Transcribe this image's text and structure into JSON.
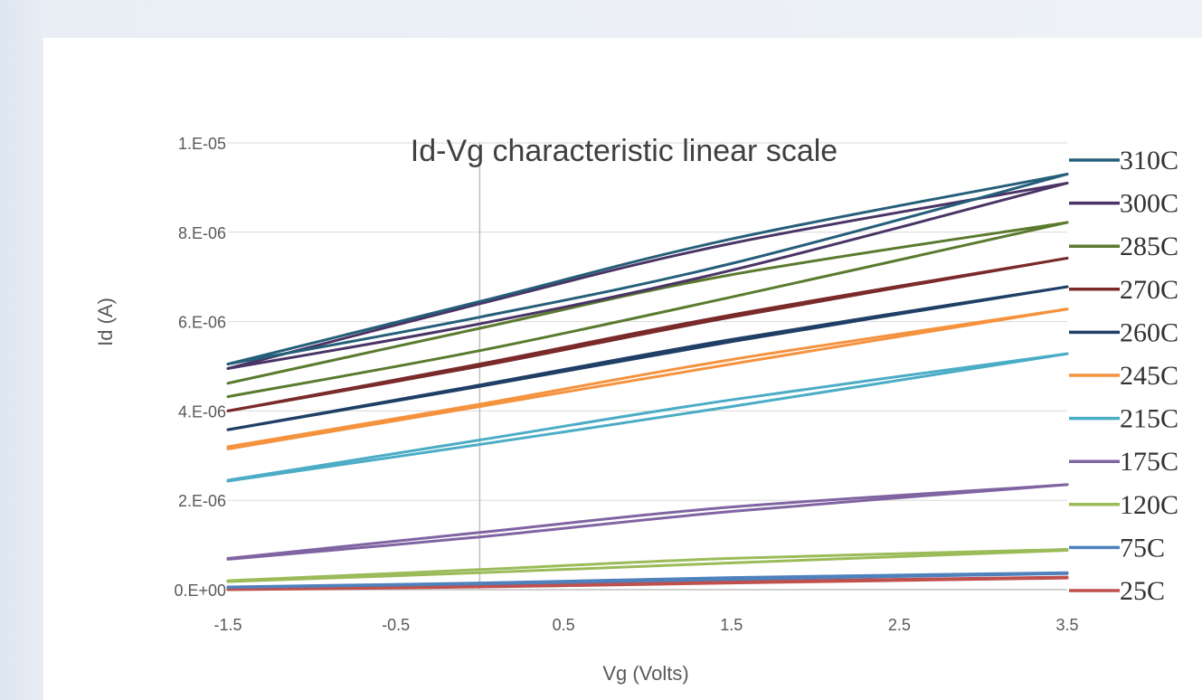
{
  "chart_data": {
    "type": "line",
    "title": "Id-Vg characteristic  linear scale",
    "xlabel": "Vg (Volts)",
    "ylabel": "Id (A)",
    "xlim": [
      -1.5,
      3.5
    ],
    "ylim": [
      0,
      1e-05
    ],
    "x_ticks": [
      -1.5,
      -0.5,
      0.5,
      1.5,
      2.5,
      3.5
    ],
    "x_tick_labels": [
      "-1.5",
      "-0.5",
      "0.5",
      "1.5",
      "2.5",
      "3.5"
    ],
    "y_ticks": [
      0,
      2e-06,
      4e-06,
      6e-06,
      8e-06,
      1e-05
    ],
    "y_tick_labels": [
      "0.E+00",
      "2.E-06",
      "4.E-06",
      "6.E-06",
      "8.E-06",
      "1.E-05"
    ],
    "grid": "horizontal",
    "reference_line_x": 0,
    "legend_position": "right",
    "sweep_note": "each series is a forward and reverse Vg sweep (hysteresis loop)",
    "series": [
      {
        "name": "310C",
        "color": "#255e79",
        "forward": [
          [
            -1.5,
            5.05e-06
          ],
          [
            0,
            6.45e-06
          ],
          [
            1.5,
            7.85e-06
          ],
          [
            3.5,
            9.3e-06
          ]
        ],
        "reverse": [
          [
            -1.5,
            5.05e-06
          ],
          [
            0,
            6.1e-06
          ],
          [
            1.5,
            7.3e-06
          ],
          [
            3.5,
            9.3e-06
          ]
        ]
      },
      {
        "name": "300C",
        "color": "#4a3466",
        "forward": [
          [
            -1.5,
            4.95e-06
          ],
          [
            0,
            6.4e-06
          ],
          [
            1.5,
            7.75e-06
          ],
          [
            3.5,
            9.1e-06
          ]
        ],
        "reverse": [
          [
            -1.5,
            4.95e-06
          ],
          [
            0,
            5.95e-06
          ],
          [
            1.5,
            7.15e-06
          ],
          [
            3.5,
            9.1e-06
          ]
        ]
      },
      {
        "name": "285C",
        "color": "#5a7a2e",
        "forward": [
          [
            -1.5,
            4.62e-06
          ],
          [
            0,
            5.85e-06
          ],
          [
            1.5,
            7.05e-06
          ],
          [
            3.5,
            8.22e-06
          ]
        ],
        "reverse": [
          [
            -1.5,
            4.32e-06
          ],
          [
            0,
            5.35e-06
          ],
          [
            1.5,
            6.55e-06
          ],
          [
            3.5,
            8.22e-06
          ]
        ]
      },
      {
        "name": "270C",
        "color": "#7a2a2a",
        "forward": [
          [
            -1.5,
            4e-06
          ],
          [
            0,
            5.05e-06
          ],
          [
            1.5,
            6.15e-06
          ],
          [
            3.5,
            7.42e-06
          ]
        ],
        "reverse": [
          [
            -1.5,
            4e-06
          ],
          [
            0,
            5e-06
          ],
          [
            1.5,
            6.1e-06
          ],
          [
            3.5,
            7.42e-06
          ]
        ]
      },
      {
        "name": "260C",
        "color": "#1f3f66",
        "forward": [
          [
            -1.5,
            3.58e-06
          ],
          [
            0,
            4.58e-06
          ],
          [
            1.5,
            5.6e-06
          ],
          [
            3.5,
            6.78e-06
          ]
        ],
        "reverse": [
          [
            -1.5,
            3.58e-06
          ],
          [
            0,
            4.55e-06
          ],
          [
            1.5,
            5.55e-06
          ],
          [
            3.5,
            6.78e-06
          ]
        ]
      },
      {
        "name": "245C",
        "color": "#f5923e",
        "forward": [
          [
            -1.5,
            3.2e-06
          ],
          [
            0,
            4.15e-06
          ],
          [
            1.5,
            5.15e-06
          ],
          [
            3.5,
            6.28e-06
          ]
        ],
        "reverse": [
          [
            -1.5,
            3.15e-06
          ],
          [
            0,
            4.1e-06
          ],
          [
            1.5,
            5.05e-06
          ],
          [
            3.5,
            6.28e-06
          ]
        ]
      },
      {
        "name": "215C",
        "color": "#4bacc6",
        "forward": [
          [
            -1.5,
            2.45e-06
          ],
          [
            0,
            3.35e-06
          ],
          [
            1.5,
            4.25e-06
          ],
          [
            3.5,
            5.28e-06
          ]
        ],
        "reverse": [
          [
            -1.5,
            2.43e-06
          ],
          [
            0,
            3.25e-06
          ],
          [
            1.5,
            4.1e-06
          ],
          [
            3.5,
            5.28e-06
          ]
        ]
      },
      {
        "name": "175C",
        "color": "#8064a2",
        "forward": [
          [
            -1.5,
            7e-07
          ],
          [
            0,
            1.28e-06
          ],
          [
            1.5,
            1.85e-06
          ],
          [
            3.5,
            2.35e-06
          ]
        ],
        "reverse": [
          [
            -1.5,
            6.8e-07
          ],
          [
            0,
            1.18e-06
          ],
          [
            1.5,
            1.75e-06
          ],
          [
            3.5,
            2.35e-06
          ]
        ]
      },
      {
        "name": "120C",
        "color": "#9bbb59",
        "forward": [
          [
            -1.5,
            2e-07
          ],
          [
            0,
            4.5e-07
          ],
          [
            1.5,
            7e-07
          ],
          [
            3.5,
            9e-07
          ]
        ],
        "reverse": [
          [
            -1.5,
            1.8e-07
          ],
          [
            0,
            3.8e-07
          ],
          [
            1.5,
            6e-07
          ],
          [
            3.5,
            8.8e-07
          ]
        ]
      },
      {
        "name": "75C",
        "color": "#4f81bd",
        "forward": [
          [
            -1.5,
            6e-08
          ],
          [
            0,
            1.5e-07
          ],
          [
            1.5,
            2.7e-07
          ],
          [
            3.5,
            3.8e-07
          ]
        ],
        "reverse": [
          [
            -1.5,
            5e-08
          ],
          [
            0,
            1.3e-07
          ],
          [
            1.5,
            2.3e-07
          ],
          [
            3.5,
            3.6e-07
          ]
        ]
      },
      {
        "name": "25C",
        "color": "#c0504d",
        "forward": [
          [
            -1.5,
            1e-08
          ],
          [
            0,
            8e-08
          ],
          [
            1.5,
            1.8e-07
          ],
          [
            3.5,
            2.8e-07
          ]
        ],
        "reverse": [
          [
            -1.5,
            0.0
          ],
          [
            0,
            6e-08
          ],
          [
            1.5,
            1.5e-07
          ],
          [
            3.5,
            2.6e-07
          ]
        ]
      }
    ]
  }
}
